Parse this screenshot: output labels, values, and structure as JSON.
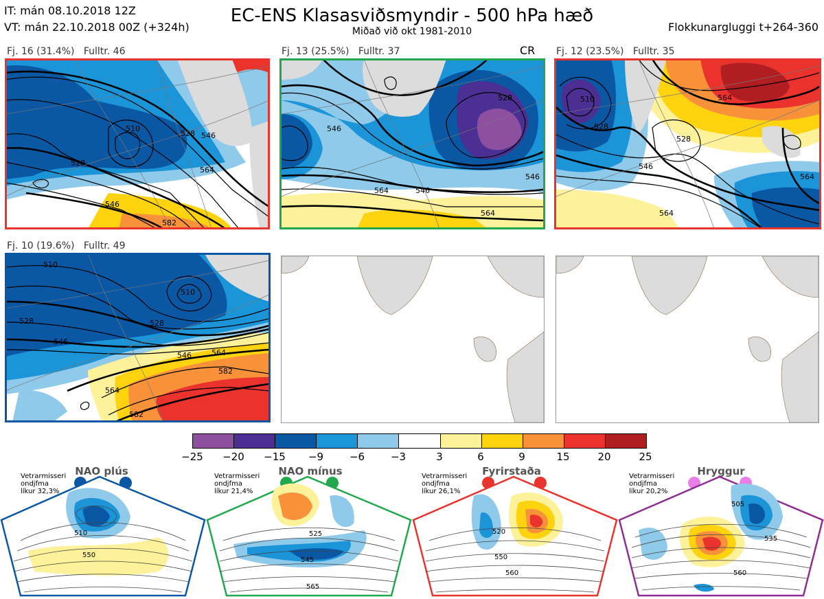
{
  "header": {
    "it_line": "IT: mán 08.10.2018 12Z",
    "vt_line": "VT: mán 22.10.2018 00Z  (+324h)",
    "title": "EC-ENS Klasasviðsmyndir - 500 hPa hæð",
    "subtitle": "Miðað við okt 1981-2010",
    "window": "Flokkunargluggi t+264-360"
  },
  "panels": [
    {
      "label": "Fj. 16 (31.4%)   Fulltr. 46",
      "border": "#e8342c",
      "kind": "nao_plus",
      "contours": [
        "510",
        "528",
        "546",
        "564",
        "582",
        "528",
        "546"
      ]
    },
    {
      "label": "Fj. 13 (25.5%)   Fulltr. 37",
      "border": "#21a84c",
      "kind": "nao_minus",
      "extra": "CR",
      "contours": [
        "546",
        "528",
        "564",
        "546",
        "546",
        "564"
      ]
    },
    {
      "label": "Fj. 12 (23.5%)   Fulltr. 35",
      "border": "#e8342c",
      "kind": "block",
      "contours": [
        "510",
        "528",
        "528",
        "546",
        "564",
        "564",
        "564"
      ]
    },
    {
      "label": "Fj. 10 (19.6%)   Fulltr. 49",
      "border": "#0a57a4",
      "kind": "zonal",
      "contours": [
        "510",
        "510",
        "528",
        "528",
        "546",
        "546",
        "564",
        "564",
        "582",
        "582"
      ]
    }
  ],
  "colorbar": {
    "colors": [
      "#8e4fa1",
      "#4b2f92",
      "#0a57a4",
      "#1b94d8",
      "#8fcaea",
      "#ffffff",
      "#fdf19a",
      "#fdd20f",
      "#f7923a",
      "#e9332c",
      "#b01e22"
    ],
    "ticks": [
      "−25",
      "−20",
      "−15",
      "−9",
      "−6",
      "−3",
      "3",
      "6",
      "9",
      "15",
      "20",
      "25"
    ]
  },
  "regimes": [
    {
      "title": "NAO plús",
      "note": "Vetrarmisseri\nondjfma\nlíkur 32,3%",
      "color": "#0a57a4",
      "contours": [
        "510",
        "550"
      ]
    },
    {
      "title": "NAO mínus",
      "note": "Vetrarmisseri\nondjfma\nlíkur 21,4%",
      "color": "#21a84c",
      "contours": [
        "525",
        "545",
        "565"
      ]
    },
    {
      "title": "Fyrirstaða",
      "note": "Vetrarmisseri\nondjfma\nlíkur 26,1%",
      "color": "#e8342c",
      "contours": [
        "520",
        "550",
        "560"
      ]
    },
    {
      "title": "Hryggur",
      "note": "Vetrarmisseri\nondjfma\nlíkur 20,2%",
      "color": "#e97ee6",
      "contours": [
        "505",
        "535",
        "560"
      ]
    }
  ]
}
